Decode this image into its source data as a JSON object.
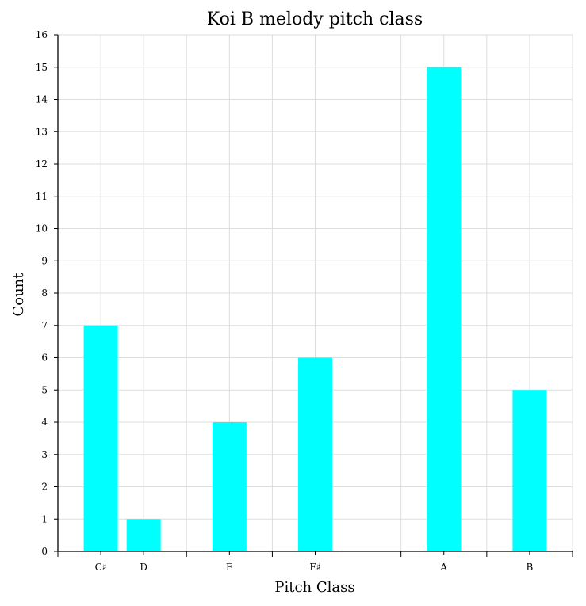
{
  "chart_data": {
    "type": "bar",
    "title": "Koi B melody pitch class",
    "xlabel": "Pitch Class",
    "ylabel": "Count",
    "categories": [
      "C♯",
      "D",
      "E",
      "F♯",
      "A",
      "B"
    ],
    "semitones": [
      1,
      2,
      4,
      6,
      9,
      11
    ],
    "values": [
      7,
      1,
      4,
      6,
      15,
      5
    ],
    "ylim": [
      0,
      16
    ],
    "xlim": [
      0,
      12
    ],
    "yticks": [
      0,
      1,
      2,
      3,
      4,
      5,
      6,
      7,
      8,
      9,
      10,
      11,
      12,
      13,
      14,
      15,
      16
    ],
    "grid": true,
    "bar_color": "#00ffff",
    "grid_color": "#dddddd"
  }
}
